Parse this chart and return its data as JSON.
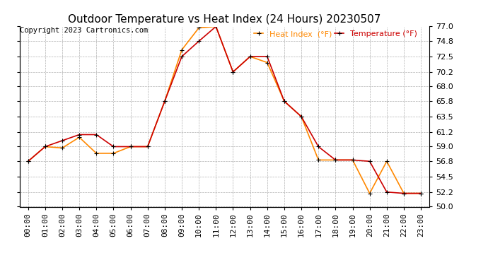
{
  "title": "Outdoor Temperature vs Heat Index (24 Hours) 20230507",
  "copyright": "Copyright 2023 Cartronics.com",
  "legend_heat": "Heat Index  (°F)",
  "legend_temp": "Temperature (°F)",
  "x_labels": [
    "00:00",
    "01:00",
    "02:00",
    "03:00",
    "04:00",
    "05:00",
    "06:00",
    "07:00",
    "08:00",
    "09:00",
    "10:00",
    "11:00",
    "12:00",
    "13:00",
    "14:00",
    "15:00",
    "16:00",
    "17:00",
    "18:00",
    "19:00",
    "20:00",
    "21:00",
    "22:00",
    "23:00"
  ],
  "temperature": [
    56.8,
    59.0,
    59.9,
    60.8,
    60.8,
    59.0,
    59.0,
    59.0,
    65.8,
    72.5,
    74.8,
    77.0,
    70.2,
    72.5,
    72.5,
    65.8,
    63.5,
    59.0,
    57.0,
    57.0,
    56.8,
    52.2,
    52.0,
    52.0
  ],
  "heat_index": [
    56.8,
    59.0,
    58.8,
    60.4,
    58.0,
    58.0,
    59.0,
    59.0,
    65.8,
    73.5,
    76.8,
    77.0,
    70.2,
    72.5,
    71.6,
    65.8,
    63.5,
    57.0,
    57.0,
    57.0,
    52.0,
    56.8,
    52.0,
    52.0
  ],
  "ylim": [
    50.0,
    77.0
  ],
  "yticks": [
    50.0,
    52.2,
    54.5,
    56.8,
    59.0,
    61.2,
    63.5,
    65.8,
    68.0,
    70.2,
    72.5,
    74.8,
    77.0
  ],
  "temp_color": "#cc0000",
  "heat_color": "#ff8800",
  "background_color": "#ffffff",
  "grid_color": "#b0b0b0",
  "title_fontsize": 11,
  "axis_fontsize": 8,
  "legend_fontsize": 8,
  "copyright_fontsize": 7.5
}
